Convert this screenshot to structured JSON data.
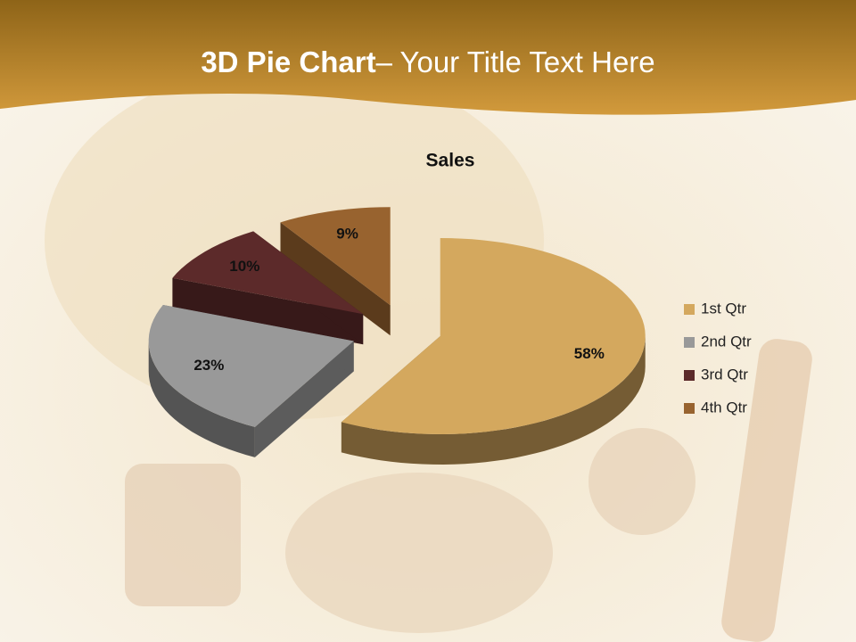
{
  "header": {
    "title_bold": "3D Pie Chart",
    "title_rest": "– Your Title Text Here"
  },
  "chart_data": {
    "type": "pie",
    "title": "Sales",
    "categories": [
      "1st Qtr",
      "2nd Qtr",
      "3rd Qtr",
      "4th Qtr"
    ],
    "values": [
      58,
      23,
      10,
      9
    ],
    "value_labels": [
      "58%",
      "23%",
      "10%",
      "9%"
    ],
    "colors": [
      "#d4a85e",
      "#999999",
      "#5c2a2a",
      "#98632f"
    ],
    "legend": "right"
  }
}
